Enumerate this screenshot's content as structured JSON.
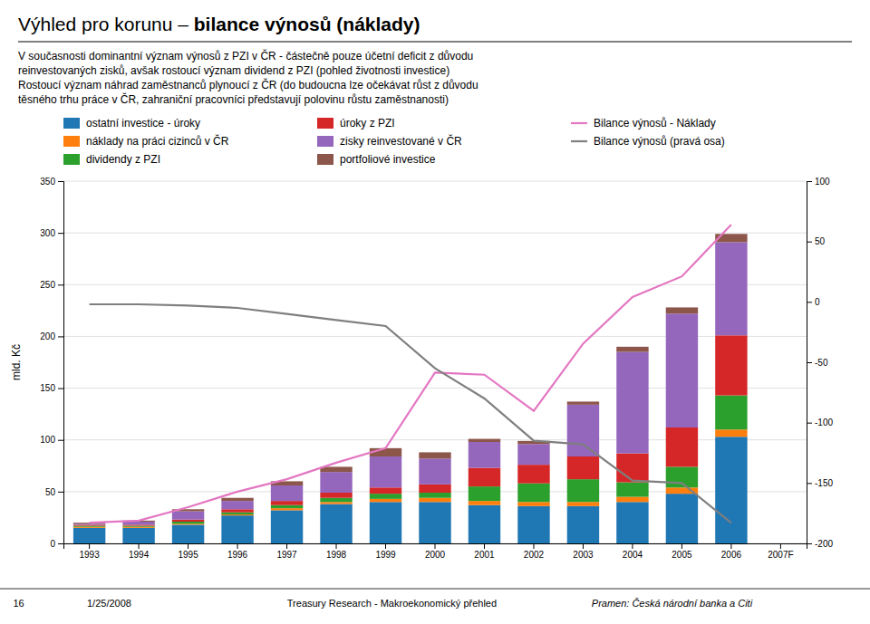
{
  "chart_data": {
    "type": "bar",
    "stacked": true,
    "title": [
      "Výhled pro korunu – ",
      "bilance výnosů (náklady)"
    ],
    "subtitle": [
      "V současnosti dominantní význam výnosů z PZI v ČR - částečně pouze účetní deficit z důvodu",
      "reinvestovaných zisků, avšak rostoucí význam dividend z PZI (pohled životnosti investice)",
      "Rostoucí význam náhrad zaměstnanců plynoucí z ČR (do budoucna lze očekávat růst z důvodu",
      "těsného trhu práce v ČR, zahraniční pracovníci představují polovinu růstu zaměstnanosti)"
    ],
    "categories": [
      "1993",
      "1994",
      "1995",
      "1996",
      "1997",
      "1998",
      "1999",
      "2000",
      "2001",
      "2002",
      "2003",
      "2004",
      "2005",
      "2006",
      "2007F"
    ],
    "ylabel": "mld. Kč",
    "ylim": [
      0,
      350
    ],
    "yticks": [
      0,
      50,
      100,
      150,
      200,
      250,
      300,
      350
    ],
    "y2lim": [
      -200,
      100
    ],
    "y2ticks": [
      -200,
      -150,
      -100,
      -50,
      0,
      50,
      100
    ],
    "grid": true,
    "legend": "top",
    "series": [
      {
        "name": "ostatní investice - úroky",
        "values": [
          15,
          15,
          18,
          27,
          32,
          38,
          40,
          40,
          37,
          36,
          36,
          40,
          48,
          103,
          0
        ]
      },
      {
        "name": "náklady na práci cizinců v ČR",
        "values": [
          1,
          1,
          1,
          1,
          2,
          2,
          3,
          4,
          4,
          4,
          4,
          5,
          6,
          7,
          0
        ]
      },
      {
        "name": "dividendy z PZI",
        "values": [
          1,
          1,
          2,
          2,
          3,
          4,
          5,
          5,
          14,
          18,
          22,
          14,
          20,
          33,
          0
        ]
      },
      {
        "name": "úroky z PZI",
        "values": [
          1,
          1,
          2,
          3,
          4,
          5,
          6,
          8,
          18,
          18,
          22,
          28,
          38,
          58,
          0
        ]
      },
      {
        "name": "zisky reinvestované v ČR",
        "values": [
          1,
          3,
          8,
          8,
          15,
          20,
          30,
          25,
          25,
          20,
          50,
          98,
          110,
          90,
          0
        ]
      },
      {
        "name": "portfoliové investice",
        "values": [
          1,
          1,
          2,
          3,
          4,
          5,
          8,
          6,
          3,
          3,
          3,
          5,
          6,
          8,
          0
        ]
      },
      {
        "name": "Bilance výnosů - Náklady",
        "type": "line",
        "values": [
          20,
          22,
          35,
          50,
          62,
          78,
          92,
          165,
          163,
          128,
          193,
          238,
          258,
          308,
          null
        ]
      },
      {
        "name": "Bilance výnosů (pravá osa)",
        "type": "line",
        "axis": "y2",
        "values": [
          -2,
          -2,
          -3,
          -5,
          -10,
          -15,
          -20,
          -55,
          -80,
          -115,
          -118,
          -148,
          -150,
          -183,
          null
        ]
      }
    ],
    "annotations": [
      "16",
      "1/25/2008",
      "Treasury Research - Makroekonomický přehled",
      "Pramen: Česká národní banka a Citi"
    ]
  }
}
